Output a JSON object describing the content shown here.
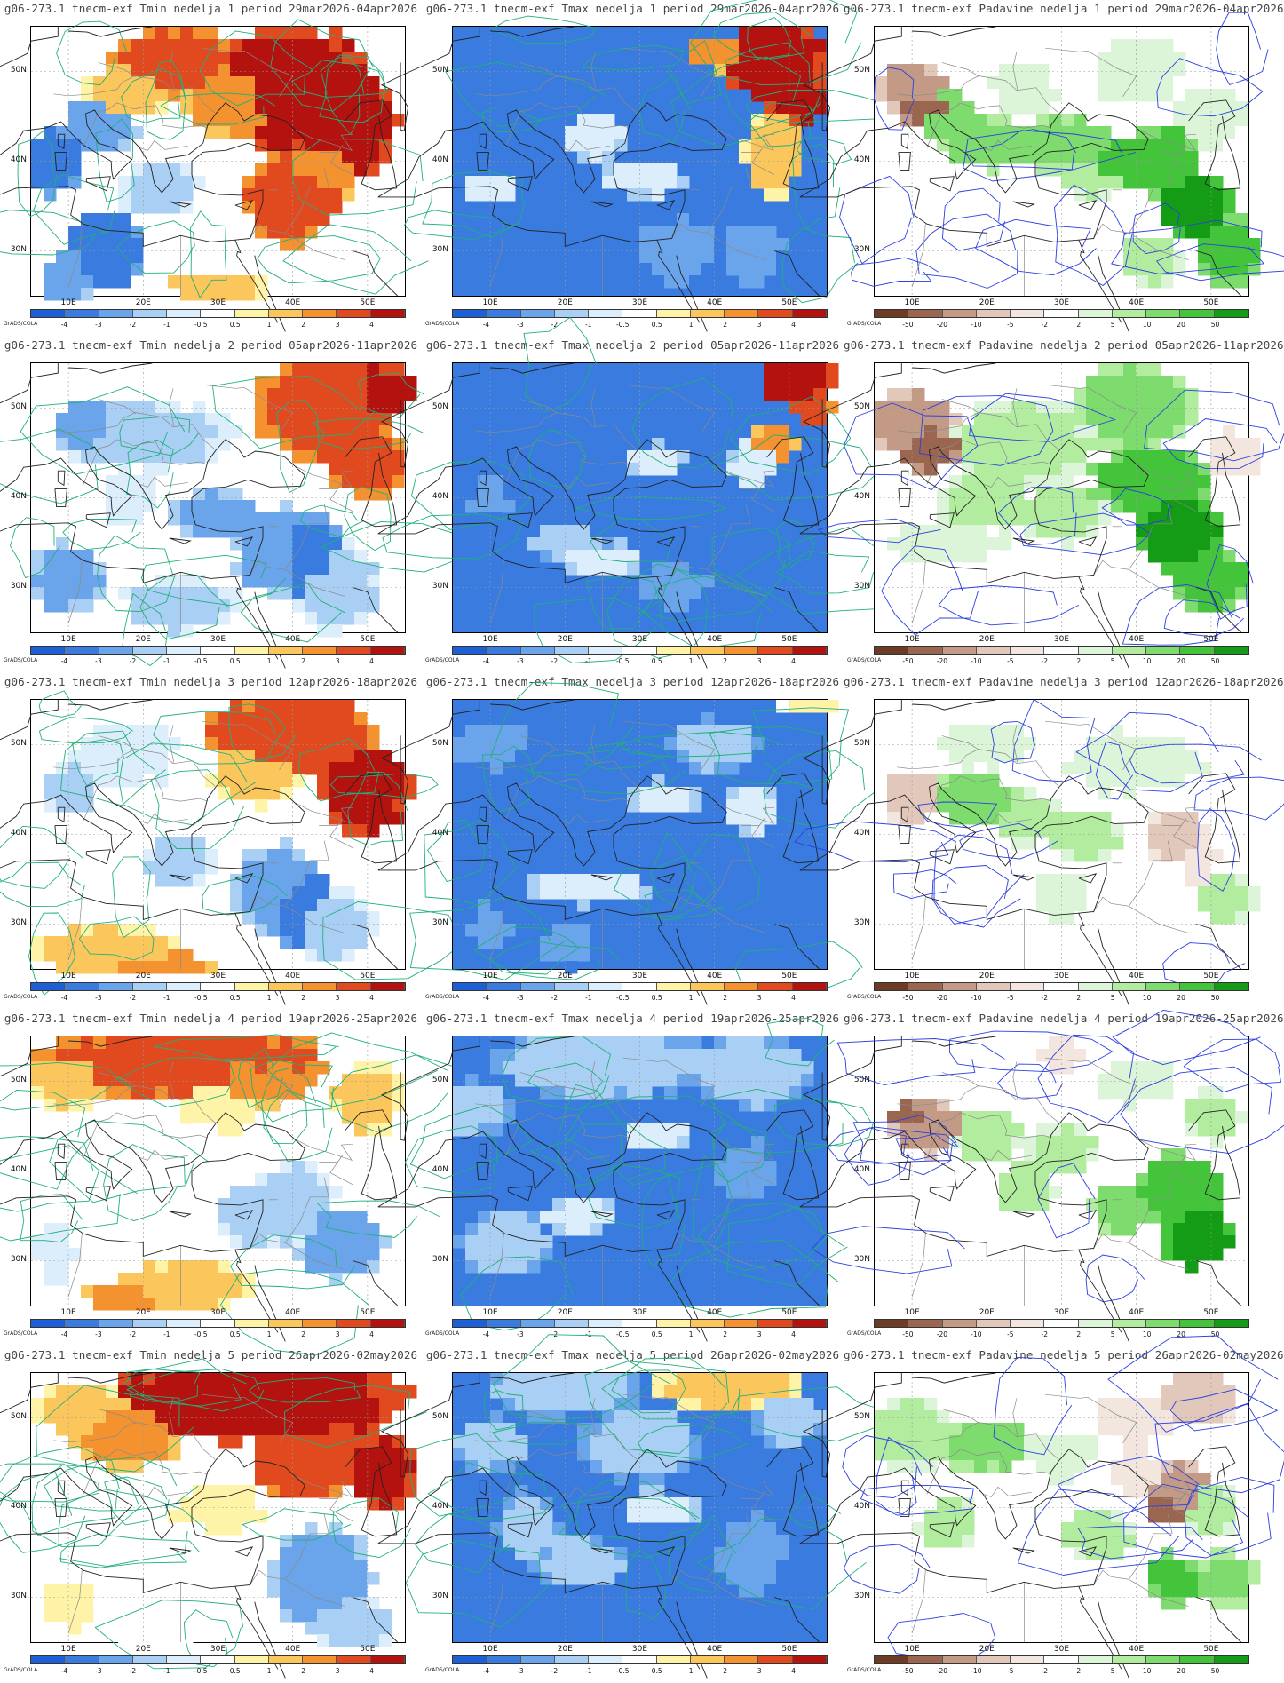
{
  "panels": [
    {
      "title": "g06-273.1 tnecm-exf Tmin nedelja 1 period 29mar2026-04apr2026",
      "var": "tmin",
      "week": 1
    },
    {
      "title": "g06-273.1 tnecm-exf Tmax nedelja 1 period 29mar2026-04apr2026",
      "var": "tmax",
      "week": 1
    },
    {
      "title": "g06-273.1 tnecm-exf Padavine nedelja 1 period 29mar2026-04apr2026",
      "var": "pad",
      "week": 1
    },
    {
      "title": "g06-273.1 tnecm-exf Tmin nedelja 2 period 05apr2026-11apr2026",
      "var": "tmin",
      "week": 2
    },
    {
      "title": "g06-273.1 tnecm-exf Tmax nedelja 2 period 05apr2026-11apr2026",
      "var": "tmax",
      "week": 2
    },
    {
      "title": "g06-273.1 tnecm-exf Padavine nedelja 2 period 05apr2026-11apr2026",
      "var": "pad",
      "week": 2
    },
    {
      "title": "g06-273.1 tnecm-exf Tmin nedelja 3 period 12apr2026-18apr2026",
      "var": "tmin",
      "week": 3
    },
    {
      "title": "g06-273.1 tnecm-exf Tmax nedelja 3 period 12apr2026-18apr2026",
      "var": "tmax",
      "week": 3
    },
    {
      "title": "g06-273.1 tnecm-exf Padavine nedelja 3 period 12apr2026-18apr2026",
      "var": "pad",
      "week": 3
    },
    {
      "title": "g06-273.1 tnecm-exf Tmin nedelja 4 period 19apr2026-25apr2026",
      "var": "tmin",
      "week": 4
    },
    {
      "title": "g06-273.1 tnecm-exf Tmax nedelja 4 period 19apr2026-25apr2026",
      "var": "tmax",
      "week": 4
    },
    {
      "title": "g06-273.1 tnecm-exf Padavine nedelja 4 period 19apr2026-25apr2026",
      "var": "pad",
      "week": 4
    },
    {
      "title": "g06-273.1 tnecm-exf Tmin nedelja 5 period 26apr2026-02may2026",
      "var": "tmin",
      "week": 5
    },
    {
      "title": "g06-273.1 tnecm-exf Tmax nedelja 5 period 26apr2026-02may2026",
      "var": "tmax",
      "week": 5
    },
    {
      "title": "g06-273.1 tnecm-exf Padavine nedelja 5 period 26apr2026-02may2026",
      "var": "pad",
      "week": 5
    }
  ],
  "axes": {
    "lat_labels": [
      "50N",
      "40N",
      "30N"
    ],
    "lon_labels": [
      "10E",
      "20E",
      "30E",
      "40E",
      "50E"
    ],
    "lat_values": [
      50,
      40,
      30
    ],
    "lon_values": [
      10,
      20,
      30,
      40,
      50
    ],
    "lat_range": [
      25,
      55
    ],
    "lon_range": [
      5,
      55
    ]
  },
  "colorbars": {
    "temp": {
      "labels": [
        "-4",
        "-3",
        "-2",
        "-1",
        "-0.5",
        "0.5",
        "1",
        "2",
        "3",
        "4"
      ],
      "colors": [
        "#1f5fd6",
        "#3a7be0",
        "#6aa4ea",
        "#a9cff4",
        "#dcedfb",
        "#ffffff",
        "#fff3a8",
        "#fbc75c",
        "#f3922e",
        "#e14a1e",
        "#b3120f"
      ]
    },
    "pad": {
      "labels": [
        "-50",
        "-20",
        "-10",
        "-5",
        "-2",
        "2",
        "5",
        "10",
        "20",
        "50"
      ],
      "colors": [
        "#6e3b24",
        "#9b6650",
        "#c29a86",
        "#e2c8bb",
        "#f3e6df",
        "#ffffff",
        "#dcf5d8",
        "#b2ec9f",
        "#7edc6e",
        "#43c43a",
        "#149c16"
      ]
    },
    "grads_label": "GrADS/COLA"
  }
}
